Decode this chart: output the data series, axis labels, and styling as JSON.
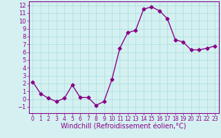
{
  "x": [
    0,
    1,
    2,
    3,
    4,
    5,
    6,
    7,
    8,
    9,
    10,
    11,
    12,
    13,
    14,
    15,
    16,
    17,
    18,
    19,
    20,
    21,
    22,
    23
  ],
  "y": [
    2.2,
    0.7,
    0.1,
    -0.3,
    0.1,
    1.8,
    0.2,
    0.2,
    -0.8,
    -0.3,
    2.5,
    6.5,
    8.5,
    8.8,
    11.5,
    11.8,
    11.3,
    10.3,
    7.6,
    7.3,
    6.3,
    6.3,
    6.5,
    6.8
  ],
  "line_color": "#880088",
  "marker": "D",
  "marker_size": 2.5,
  "bg_color": "#d4f0f0",
  "grid_color": "#aadddd",
  "xlabel": "Windchill (Refroidissement éolien,°C)",
  "ylabel": "",
  "ylim": [
    -1.8,
    12.5
  ],
  "xlim": [
    -0.5,
    23.5
  ],
  "yticks": [
    -1,
    0,
    1,
    2,
    3,
    4,
    5,
    6,
    7,
    8,
    9,
    10,
    11,
    12
  ],
  "xticks": [
    0,
    1,
    2,
    3,
    4,
    5,
    6,
    7,
    8,
    9,
    10,
    11,
    12,
    13,
    14,
    15,
    16,
    17,
    18,
    19,
    20,
    21,
    22,
    23
  ],
  "tick_color": "#880088",
  "axis_color": "#880088",
  "xlabel_fontsize": 7,
  "ytick_fontsize": 6,
  "xtick_fontsize": 5.5,
  "line_width": 1.0
}
